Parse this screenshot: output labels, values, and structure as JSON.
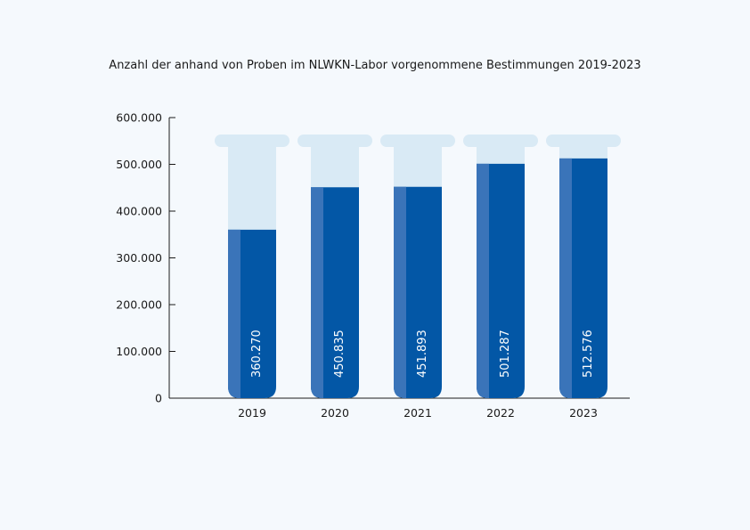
{
  "chart_data": {
    "type": "bar",
    "title": "Anzahl der anhand von Proben im NLWKN-Labor vorgenommene Bestimmungen 2019-2023",
    "categories": [
      "2019",
      "2020",
      "2021",
      "2022",
      "2023"
    ],
    "values": [
      360270,
      450835,
      451893,
      501287,
      512576
    ],
    "value_labels": [
      "360.270",
      "450.835",
      "451.893",
      "501.287",
      "512.576"
    ],
    "yticks": [
      0,
      100000,
      200000,
      300000,
      400000,
      500000,
      600000
    ],
    "ytick_labels": [
      "0",
      "100.000",
      "200.000",
      "300.000",
      "400.000",
      "500.000",
      "600.000"
    ],
    "ylim": [
      0,
      600000
    ],
    "xlabel": "",
    "ylabel": "",
    "grid": false,
    "bar_style": "test-tube",
    "colors": {
      "fill": "#0357a6",
      "fill_highlight": "#3a74b9",
      "tube_empty": "#d9eaf5",
      "axis": "#1a1a1a",
      "background": "#f5f9fd"
    }
  }
}
